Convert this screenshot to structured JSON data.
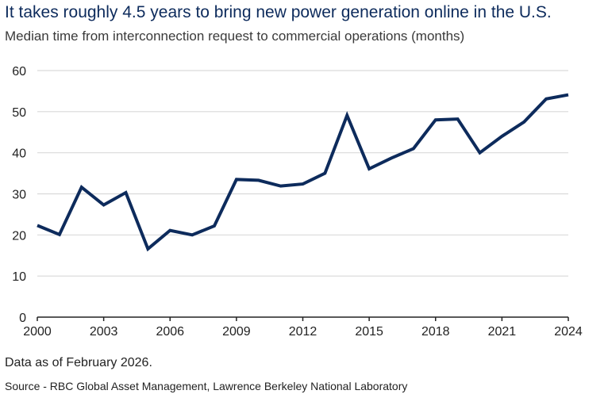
{
  "title": "It takes roughly 4.5 years to bring new power generation online in the U.S.",
  "subtitle": "Median time from interconnection request to commercial operations (months)",
  "note": "Data as of February 2026.",
  "source": "Source - RBC Global Asset Management, Lawrence Berkeley National Laboratory",
  "colors": {
    "line": "#0d2b5c",
    "grid": "#d9d9d9",
    "axis": "#222222",
    "title": "#0d2b5c"
  },
  "chart_data": {
    "type": "line",
    "title": "It takes roughly 4.5 years to bring new power generation online in the U.S.",
    "subtitle": "Median time from interconnection request to commercial operations (months)",
    "xlabel": "",
    "ylabel": "",
    "xlim": [
      2000,
      2024
    ],
    "ylim": [
      0,
      60
    ],
    "x_ticks": [
      "2000",
      "2003",
      "2006",
      "2009",
      "2012",
      "2015",
      "2018",
      "2021",
      "2024"
    ],
    "y_ticks": [
      "0",
      "10",
      "20",
      "30",
      "40",
      "50",
      "60"
    ],
    "grid": "horizontal",
    "legend": "none",
    "series": [
      {
        "x": [
          2000,
          2001,
          2002,
          2003,
          2004,
          2005,
          2006,
          2007,
          2008,
          2009,
          2010,
          2011,
          2012,
          2013,
          2014,
          2015,
          2016,
          2017,
          2018,
          2019,
          2020,
          2021,
          2022,
          2023,
          2024
        ],
        "values": [
          22.3,
          20.1,
          31.6,
          27.3,
          30.3,
          16.6,
          21.1,
          20.0,
          22.2,
          33.5,
          33.3,
          31.9,
          32.4,
          35.0,
          49.1,
          36.1,
          38.7,
          41.0,
          48.0,
          48.2,
          40.0,
          44.0,
          47.5,
          53.1,
          54.1
        ]
      }
    ]
  }
}
